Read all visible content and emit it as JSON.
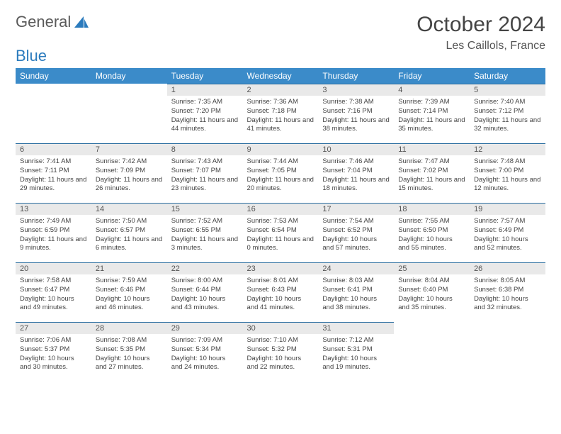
{
  "logo": {
    "part1": "General",
    "part2": "Blue"
  },
  "header": {
    "month": "October 2024",
    "location": "Les Caillols, France"
  },
  "colors": {
    "header_bg": "#3b8bc9",
    "header_text": "#ffffff",
    "daynum_bg": "#e9e9e9",
    "cell_border": "#2b6ea0"
  },
  "day_names": [
    "Sunday",
    "Monday",
    "Tuesday",
    "Wednesday",
    "Thursday",
    "Friday",
    "Saturday"
  ],
  "weeks": [
    [
      {
        "n": "",
        "sr": "",
        "ss": "",
        "dl": ""
      },
      {
        "n": "",
        "sr": "",
        "ss": "",
        "dl": ""
      },
      {
        "n": "1",
        "sr": "7:35 AM",
        "ss": "7:20 PM",
        "dl": "11 hours and 44 minutes."
      },
      {
        "n": "2",
        "sr": "7:36 AM",
        "ss": "7:18 PM",
        "dl": "11 hours and 41 minutes."
      },
      {
        "n": "3",
        "sr": "7:38 AM",
        "ss": "7:16 PM",
        "dl": "11 hours and 38 minutes."
      },
      {
        "n": "4",
        "sr": "7:39 AM",
        "ss": "7:14 PM",
        "dl": "11 hours and 35 minutes."
      },
      {
        "n": "5",
        "sr": "7:40 AM",
        "ss": "7:12 PM",
        "dl": "11 hours and 32 minutes."
      }
    ],
    [
      {
        "n": "6",
        "sr": "7:41 AM",
        "ss": "7:11 PM",
        "dl": "11 hours and 29 minutes."
      },
      {
        "n": "7",
        "sr": "7:42 AM",
        "ss": "7:09 PM",
        "dl": "11 hours and 26 minutes."
      },
      {
        "n": "8",
        "sr": "7:43 AM",
        "ss": "7:07 PM",
        "dl": "11 hours and 23 minutes."
      },
      {
        "n": "9",
        "sr": "7:44 AM",
        "ss": "7:05 PM",
        "dl": "11 hours and 20 minutes."
      },
      {
        "n": "10",
        "sr": "7:46 AM",
        "ss": "7:04 PM",
        "dl": "11 hours and 18 minutes."
      },
      {
        "n": "11",
        "sr": "7:47 AM",
        "ss": "7:02 PM",
        "dl": "11 hours and 15 minutes."
      },
      {
        "n": "12",
        "sr": "7:48 AM",
        "ss": "7:00 PM",
        "dl": "11 hours and 12 minutes."
      }
    ],
    [
      {
        "n": "13",
        "sr": "7:49 AM",
        "ss": "6:59 PM",
        "dl": "11 hours and 9 minutes."
      },
      {
        "n": "14",
        "sr": "7:50 AM",
        "ss": "6:57 PM",
        "dl": "11 hours and 6 minutes."
      },
      {
        "n": "15",
        "sr": "7:52 AM",
        "ss": "6:55 PM",
        "dl": "11 hours and 3 minutes."
      },
      {
        "n": "16",
        "sr": "7:53 AM",
        "ss": "6:54 PM",
        "dl": "11 hours and 0 minutes."
      },
      {
        "n": "17",
        "sr": "7:54 AM",
        "ss": "6:52 PM",
        "dl": "10 hours and 57 minutes."
      },
      {
        "n": "18",
        "sr": "7:55 AM",
        "ss": "6:50 PM",
        "dl": "10 hours and 55 minutes."
      },
      {
        "n": "19",
        "sr": "7:57 AM",
        "ss": "6:49 PM",
        "dl": "10 hours and 52 minutes."
      }
    ],
    [
      {
        "n": "20",
        "sr": "7:58 AM",
        "ss": "6:47 PM",
        "dl": "10 hours and 49 minutes."
      },
      {
        "n": "21",
        "sr": "7:59 AM",
        "ss": "6:46 PM",
        "dl": "10 hours and 46 minutes."
      },
      {
        "n": "22",
        "sr": "8:00 AM",
        "ss": "6:44 PM",
        "dl": "10 hours and 43 minutes."
      },
      {
        "n": "23",
        "sr": "8:01 AM",
        "ss": "6:43 PM",
        "dl": "10 hours and 41 minutes."
      },
      {
        "n": "24",
        "sr": "8:03 AM",
        "ss": "6:41 PM",
        "dl": "10 hours and 38 minutes."
      },
      {
        "n": "25",
        "sr": "8:04 AM",
        "ss": "6:40 PM",
        "dl": "10 hours and 35 minutes."
      },
      {
        "n": "26",
        "sr": "8:05 AM",
        "ss": "6:38 PM",
        "dl": "10 hours and 32 minutes."
      }
    ],
    [
      {
        "n": "27",
        "sr": "7:06 AM",
        "ss": "5:37 PM",
        "dl": "10 hours and 30 minutes."
      },
      {
        "n": "28",
        "sr": "7:08 AM",
        "ss": "5:35 PM",
        "dl": "10 hours and 27 minutes."
      },
      {
        "n": "29",
        "sr": "7:09 AM",
        "ss": "5:34 PM",
        "dl": "10 hours and 24 minutes."
      },
      {
        "n": "30",
        "sr": "7:10 AM",
        "ss": "5:32 PM",
        "dl": "10 hours and 22 minutes."
      },
      {
        "n": "31",
        "sr": "7:12 AM",
        "ss": "5:31 PM",
        "dl": "10 hours and 19 minutes."
      },
      {
        "n": "",
        "sr": "",
        "ss": "",
        "dl": ""
      },
      {
        "n": "",
        "sr": "",
        "ss": "",
        "dl": ""
      }
    ]
  ],
  "labels": {
    "sunrise": "Sunrise:",
    "sunset": "Sunset:",
    "daylight": "Daylight:"
  }
}
